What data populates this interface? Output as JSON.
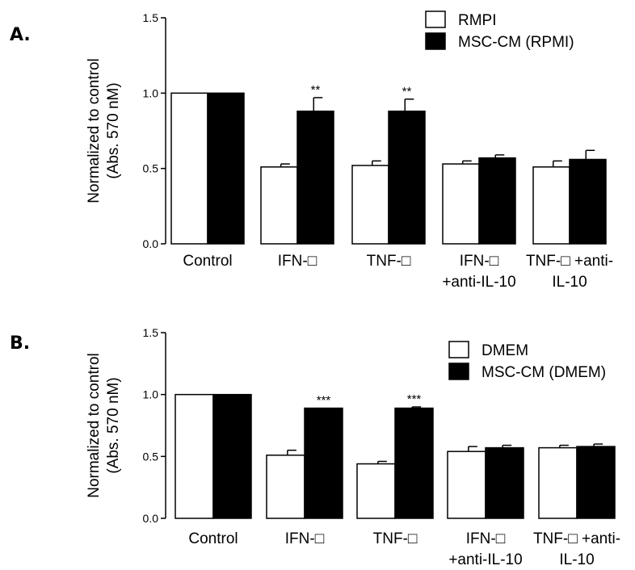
{
  "chart_data": [
    {
      "type": "bar",
      "panel_label": "A.",
      "ylabel_lines": [
        "Normalized to control",
        "(Abs. 570 nM)"
      ],
      "ylim": [
        0,
        1.5
      ],
      "yticks": [
        "0.0",
        "0.5",
        "1.0",
        "1.5"
      ],
      "ytick_values": [
        0,
        0.5,
        1.0,
        1.5
      ],
      "categories": [
        [
          "Control"
        ],
        [
          "IFN-□"
        ],
        [
          "TNF-□"
        ],
        [
          "IFN-□",
          "+anti-IL-10"
        ],
        [
          "TNF-□ +anti-",
          "IL-10"
        ]
      ],
      "series": [
        {
          "name": "RMPI",
          "color": "#ffffff",
          "values": [
            1.0,
            0.51,
            0.52,
            0.53,
            0.51
          ],
          "errors": [
            0,
            0.02,
            0.03,
            0.02,
            0.04
          ],
          "significance": [
            "",
            "",
            "",
            "",
            ""
          ]
        },
        {
          "name": "MSC-CM (RPMI)",
          "color": "#000000",
          "values": [
            1.0,
            0.88,
            0.88,
            0.57,
            0.56
          ],
          "errors": [
            0,
            0.09,
            0.08,
            0.02,
            0.06
          ],
          "significance": [
            "",
            "**",
            "**",
            "",
            ""
          ]
        }
      ]
    },
    {
      "type": "bar",
      "panel_label": "B.",
      "ylabel_lines": [
        "Normalized to control",
        "(Abs. 570 nM)"
      ],
      "ylim": [
        0,
        1.5
      ],
      "yticks": [
        "0.0",
        "0.5",
        "1.0",
        "1.5"
      ],
      "ytick_values": [
        0,
        0.5,
        1.0,
        1.5
      ],
      "categories": [
        [
          "Control"
        ],
        [
          "IFN-□"
        ],
        [
          "TNF-□"
        ],
        [
          "IFN-□",
          "+anti-IL-10"
        ],
        [
          "TNF-□ +anti-",
          "IL-10"
        ]
      ],
      "series": [
        {
          "name": "DMEM",
          "color": "#ffffff",
          "values": [
            1.0,
            0.51,
            0.44,
            0.54,
            0.57
          ],
          "errors": [
            0,
            0.04,
            0.02,
            0.04,
            0.02
          ],
          "significance": [
            "",
            "",
            "",
            "",
            ""
          ]
        },
        {
          "name": "MSC-CM (DMEM)",
          "color": "#000000",
          "values": [
            1.0,
            0.89,
            0.89,
            0.57,
            0.58
          ],
          "errors": [
            0,
            0.0,
            0.01,
            0.02,
            0.02
          ],
          "significance": [
            "",
            "***",
            "***",
            "",
            ""
          ]
        }
      ]
    }
  ]
}
